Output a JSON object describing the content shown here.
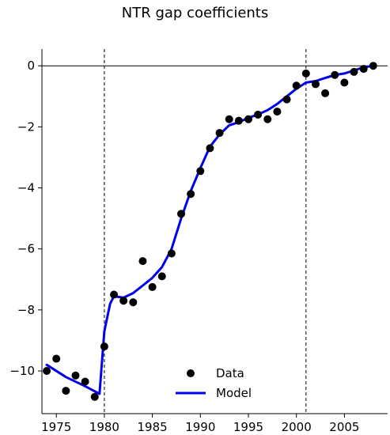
{
  "chart_data": {
    "type": "scatter",
    "title": "NTR gap coefficients",
    "xlabel": "",
    "ylabel": "",
    "xlim": [
      1973.5,
      2009.5
    ],
    "ylim": [
      -11.4,
      0.55
    ],
    "xticks": [
      1975,
      1980,
      1985,
      1990,
      1995,
      2000,
      2005
    ],
    "yticks": [
      0,
      -2,
      -4,
      -6,
      -8,
      -10
    ],
    "ytick_labels": [
      "0",
      "−2",
      "−4",
      "−6",
      "−8",
      "−10"
    ],
    "vlines": [
      1980,
      2001
    ],
    "hline": 0,
    "grid": false,
    "legend": {
      "placement": "bottom-center",
      "entries": [
        "Data",
        "Model"
      ]
    },
    "colors": {
      "data": "#000000",
      "model": "#0000ee",
      "axis": "#000000"
    },
    "series": [
      {
        "name": "Data",
        "kind": "scatter",
        "x": [
          1974,
          1975,
          1976,
          1977,
          1978,
          1979,
          1980,
          1981,
          1982,
          1983,
          1984,
          1985,
          1986,
          1987,
          1988,
          1989,
          1990,
          1991,
          1992,
          1993,
          1994,
          1995,
          1996,
          1997,
          1998,
          1999,
          2000,
          2001,
          2002,
          2003,
          2004,
          2005,
          2006,
          2007,
          2008
        ],
        "y": [
          -10.0,
          -9.6,
          -10.65,
          -10.15,
          -10.35,
          -10.85,
          -9.2,
          -7.5,
          -7.7,
          -7.75,
          -6.4,
          -7.25,
          -6.9,
          -6.15,
          -4.85,
          -4.2,
          -3.45,
          -2.7,
          -2.2,
          -1.75,
          -1.8,
          -1.75,
          -1.6,
          -1.75,
          -1.5,
          -1.1,
          -0.65,
          -0.25,
          -0.6,
          -0.9,
          -0.3,
          -0.55,
          -0.2,
          -0.1,
          0.0
        ]
      },
      {
        "name": "Model",
        "kind": "line",
        "x": [
          1974,
          1976,
          1978,
          1979.5,
          1980,
          1980.6,
          1981,
          1982,
          1983,
          1984,
          1985,
          1986,
          1987,
          1988,
          1989,
          1990,
          1991,
          1992,
          1993,
          1994,
          1995,
          1996,
          1997,
          1998,
          1999,
          2000,
          2001,
          2002,
          2003,
          2004,
          2005,
          2006,
          2007,
          2008
        ],
        "y": [
          -9.8,
          -10.2,
          -10.5,
          -10.75,
          -8.7,
          -7.8,
          -7.55,
          -7.6,
          -7.45,
          -7.2,
          -6.95,
          -6.6,
          -6.0,
          -5.0,
          -4.1,
          -3.35,
          -2.65,
          -2.25,
          -1.95,
          -1.85,
          -1.7,
          -1.6,
          -1.45,
          -1.25,
          -1.0,
          -0.75,
          -0.55,
          -0.5,
          -0.4,
          -0.3,
          -0.25,
          -0.15,
          -0.05,
          0.0
        ]
      }
    ]
  }
}
